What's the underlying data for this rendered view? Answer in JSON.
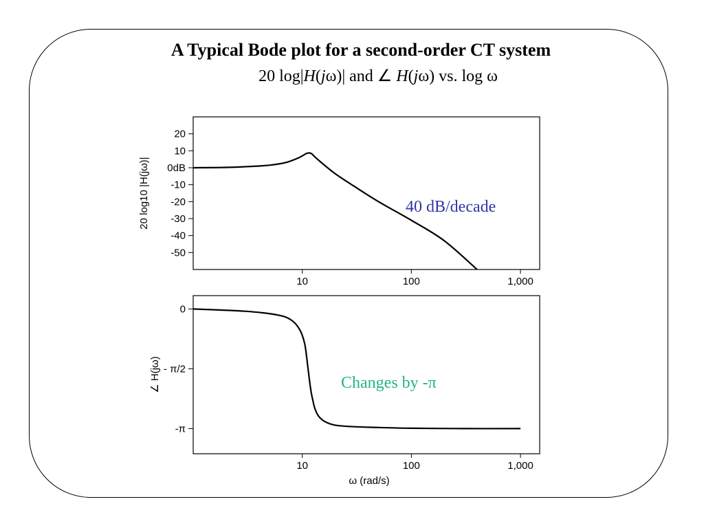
{
  "slide": {
    "title": "A Typical Bode plot for a second-order CT system",
    "subtitle": {
      "p1": "20 log|",
      "H": "H",
      "p2": "(",
      "j": "j",
      "p3": "ω)| and  ∠ ",
      "H2": "H",
      "p4": "(",
      "j2": "j",
      "p5": "ω) vs. log ω"
    }
  },
  "colors": {
    "annotation_mag": "#3333aa",
    "annotation_phase": "#22b38a",
    "curve": "#000000"
  },
  "chart_data": [
    {
      "type": "line",
      "ylabel": "20 log10 |H(jω)|",
      "xscale": "log",
      "xlim": [
        1,
        1500
      ],
      "ylim": [
        -60,
        30
      ],
      "x_ticks": [
        10,
        100,
        1000
      ],
      "x_tick_labels": [
        "10",
        "100",
        "1,000"
      ],
      "y_ticks": [
        20,
        10,
        0,
        -10,
        -20,
        -30,
        -40,
        -50
      ],
      "y_tick_labels": [
        "20",
        "10",
        "0dB",
        "-10",
        "-20",
        "-30",
        "-40",
        "-50"
      ],
      "annotation": "40 dB/decade",
      "series": [
        {
          "x": [
            1,
            2,
            3,
            5,
            7,
            9,
            10,
            11,
            12,
            13,
            15,
            20,
            30,
            50,
            100,
            200,
            400
          ],
          "y": [
            0,
            0.2,
            0.6,
            1.5,
            3,
            5.5,
            7,
            8.5,
            8.5,
            6.5,
            3,
            -3.5,
            -11,
            -20,
            -31,
            -43,
            -60
          ]
        }
      ]
    },
    {
      "type": "line",
      "xlabel": "ω (rad/s)",
      "ylabel": "∠ H(jω)",
      "xscale": "log",
      "xlim": [
        1,
        1500
      ],
      "ylim": [
        -3.8,
        0.35
      ],
      "x_ticks": [
        10,
        100,
        1000
      ],
      "x_tick_labels": [
        "10",
        "100",
        "1,000"
      ],
      "y_ticks": [
        0,
        -1.5708,
        -3.1416
      ],
      "y_tick_labels": [
        "0",
        "- π/2",
        "-π"
      ],
      "annotation": "Changes by -π",
      "series": [
        {
          "x": [
            1,
            3,
            6,
            8,
            9.5,
            10.5,
            11,
            11.5,
            12,
            12.5,
            13,
            14,
            16,
            20,
            30,
            50,
            100,
            300,
            1000
          ],
          "y": [
            0,
            -0.06,
            -0.16,
            -0.3,
            -0.55,
            -0.9,
            -1.3,
            -1.75,
            -2.15,
            -2.4,
            -2.6,
            -2.8,
            -2.95,
            -3.05,
            -3.09,
            -3.11,
            -3.13,
            -3.14,
            -3.14
          ]
        }
      ]
    }
  ]
}
